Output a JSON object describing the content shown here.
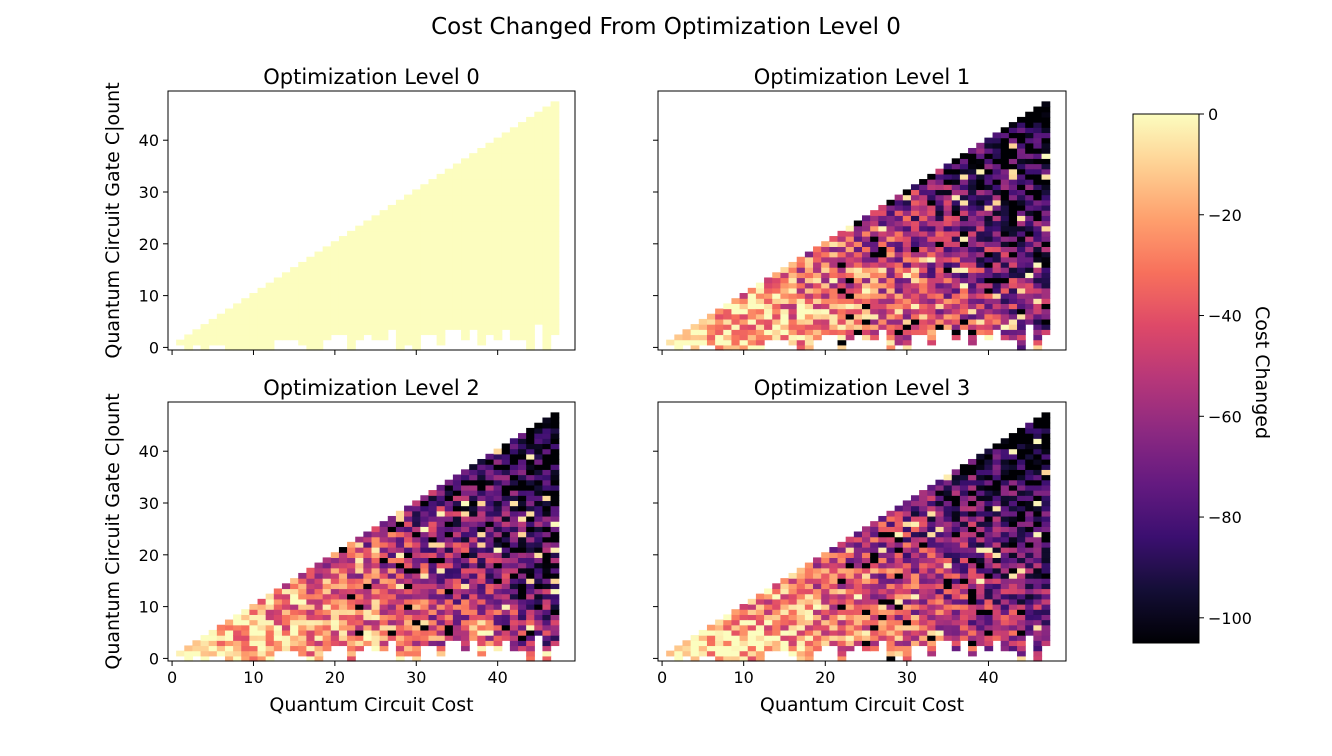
{
  "figure": {
    "suptitle": "Cost Changed From Optimization Level 0"
  },
  "colorbar": {
    "label": "Cost Changed",
    "ticks": [
      0,
      -20,
      -40,
      -60,
      -80,
      -100
    ],
    "tick_labels": [
      "0",
      "−20",
      "−40",
      "−60",
      "−80",
      "−100"
    ],
    "vmin": -105,
    "vmax": 0,
    "colormap": "magma"
  },
  "chart_data": [
    {
      "type": "heatmap",
      "title": "Optimization Level 0",
      "xlabel": "",
      "ylabel": "Quantum Circuit Gate C|ount",
      "x_ticks": [
        0,
        10,
        20,
        30,
        40
      ],
      "x_tick_labels": [
        "",
        "",
        "",
        "",
        ""
      ],
      "y_ticks": [
        0,
        10,
        20,
        30,
        40
      ],
      "y_tick_labels": [
        "0",
        "10",
        "20",
        "30",
        "40"
      ],
      "xlim": [
        -0.5,
        49.5
      ],
      "ylim": [
        -0.5,
        49.5
      ],
      "cell_range": {
        "x": [
          1,
          47
        ],
        "y_min": "about 0 to 5",
        "y_max": "about x"
      },
      "value_pattern": "all cells 0"
    },
    {
      "type": "heatmap",
      "title": "Optimization Level 1",
      "xlabel": "",
      "ylabel": "",
      "x_ticks": [
        0,
        10,
        20,
        30,
        40
      ],
      "x_tick_labels": [
        "",
        "",
        "",
        "",
        ""
      ],
      "y_ticks": [
        0,
        10,
        20,
        30,
        40
      ],
      "y_tick_labels": [
        "",
        "",
        "",
        "",
        ""
      ],
      "xlim": [
        -0.5,
        49.5
      ],
      "ylim": [
        -0.5,
        49.5
      ],
      "cell_range": {
        "x": [
          1,
          47
        ],
        "y_min": "about 0 to 5",
        "y_max": "about x"
      },
      "value_pattern": "near 0 at small cost, decreasing toward about -105 at large cost and gate count, noisy"
    },
    {
      "type": "heatmap",
      "title": "Optimization Level 2",
      "xlabel": "Quantum Circuit Cost",
      "ylabel": "Quantum Circuit Gate C|ount",
      "x_ticks": [
        0,
        10,
        20,
        30,
        40
      ],
      "x_tick_labels": [
        "0",
        "10",
        "20",
        "30",
        "40"
      ],
      "y_ticks": [
        0,
        10,
        20,
        30,
        40
      ],
      "y_tick_labels": [
        "0",
        "10",
        "20",
        "30",
        "40"
      ],
      "xlim": [
        -0.5,
        49.5
      ],
      "ylim": [
        -0.5,
        49.5
      ],
      "cell_range": {
        "x": [
          1,
          47
        ],
        "y_min": "about 0 to 5",
        "y_max": "about x"
      },
      "value_pattern": "near 0 at small cost, decreasing toward about -105 at large cost and gate count, noisy"
    },
    {
      "type": "heatmap",
      "title": "Optimization Level 3",
      "xlabel": "Quantum Circuit Cost",
      "ylabel": "",
      "x_ticks": [
        0,
        10,
        20,
        30,
        40
      ],
      "x_tick_labels": [
        "0",
        "10",
        "20",
        "30",
        "40"
      ],
      "y_ticks": [
        0,
        10,
        20,
        30,
        40
      ],
      "y_tick_labels": [
        "",
        "",
        "",
        "",
        ""
      ],
      "xlim": [
        -0.5,
        49.5
      ],
      "ylim": [
        -0.5,
        49.5
      ],
      "cell_range": {
        "x": [
          1,
          47
        ],
        "y_min": "about 0 to 5",
        "y_max": "about x"
      },
      "value_pattern": "near 0 at small cost, decreasing toward about -105 at large cost and gate count, noisy"
    }
  ]
}
